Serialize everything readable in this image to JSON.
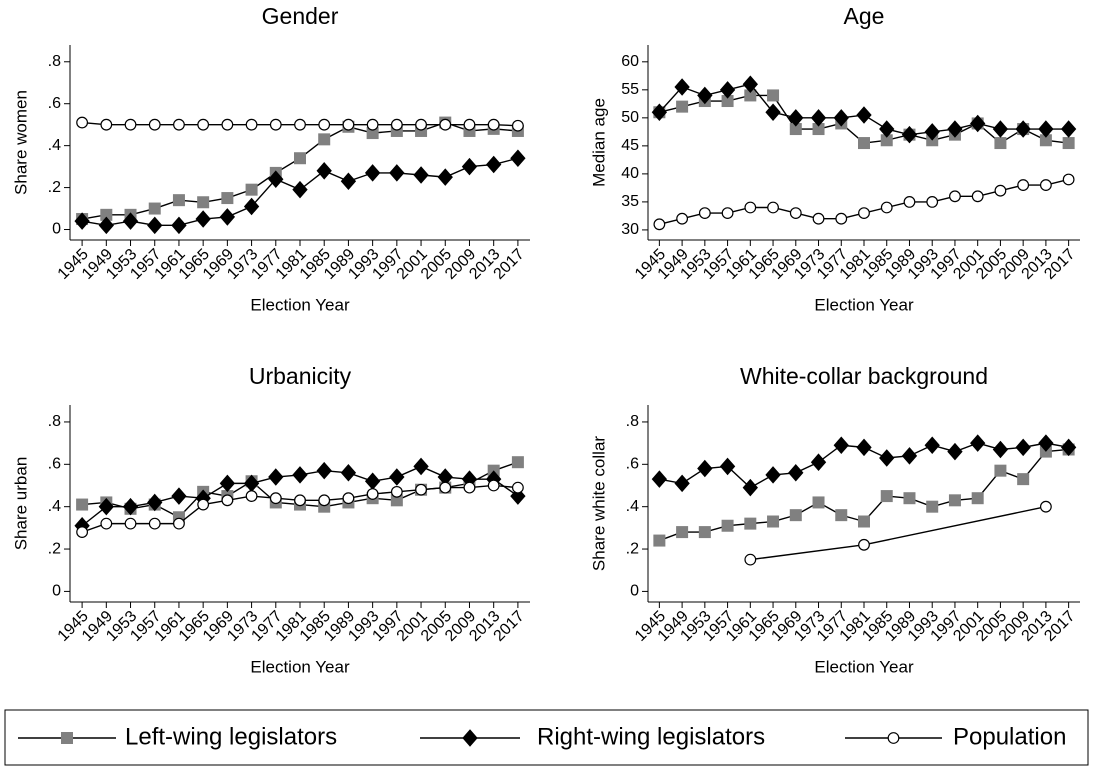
{
  "chart_data": [
    {
      "type": "line",
      "title": "Gender",
      "x_label": "Election Year",
      "y_label": "Share women",
      "x": [
        1945,
        1949,
        1953,
        1957,
        1961,
        1965,
        1969,
        1973,
        1977,
        1981,
        1985,
        1989,
        1993,
        1997,
        2001,
        2005,
        2009,
        2013,
        2017
      ],
      "xlim": [
        1943,
        2019
      ],
      "ylim": [
        -0.05,
        0.88
      ],
      "yticks": [
        0,
        {
          "value": 0.2,
          "label": ".2"
        },
        {
          "value": 0.4,
          "label": ".4"
        },
        {
          "value": 0.6,
          "label": ".6"
        },
        {
          "value": 0.8,
          "label": ".8"
        }
      ],
      "series": [
        {
          "name": "Left-wing legislators",
          "color": "#808080",
          "marker": "square",
          "values": [
            0.05,
            0.07,
            0.07,
            0.1,
            0.14,
            0.13,
            0.15,
            0.19,
            0.27,
            0.34,
            0.43,
            0.49,
            0.46,
            0.47,
            0.47,
            0.51,
            0.47,
            0.48,
            0.47
          ]
        },
        {
          "name": "Right-wing legislators",
          "color": "#000000",
          "marker": "diamond",
          "values": [
            0.04,
            0.02,
            0.04,
            0.02,
            0.02,
            0.05,
            0.06,
            0.11,
            0.24,
            0.19,
            0.28,
            0.23,
            0.27,
            0.27,
            0.26,
            0.25,
            0.3,
            0.31,
            0.34
          ]
        },
        {
          "name": "Population",
          "color": "#ffffff",
          "marker": "circle",
          "values": [
            0.51,
            0.5,
            0.5,
            0.5,
            0.5,
            0.5,
            0.5,
            0.5,
            0.5,
            0.5,
            0.5,
            0.5,
            0.5,
            0.5,
            0.5,
            0.5,
            0.5,
            0.5,
            0.495
          ]
        }
      ]
    },
    {
      "type": "line",
      "title": "Age",
      "x_label": "Election Year",
      "y_label": "Median age",
      "x": [
        1945,
        1949,
        1953,
        1957,
        1961,
        1965,
        1969,
        1973,
        1977,
        1981,
        1985,
        1989,
        1993,
        1997,
        2001,
        2005,
        2009,
        2013,
        2017
      ],
      "xlim": [
        1943,
        2019
      ],
      "ylim": [
        28.2,
        63
      ],
      "yticks": [
        30,
        35,
        40,
        45,
        50,
        55,
        60
      ],
      "series": [
        {
          "color": "#808080",
          "marker": "square",
          "values": [
            51,
            52,
            53,
            53,
            54,
            54,
            48,
            48,
            49,
            45.5,
            46,
            47,
            46,
            47,
            49,
            45.5,
            48,
            46,
            45.5
          ]
        },
        {
          "color": "#000000",
          "marker": "diamond",
          "values": [
            51,
            55.5,
            54,
            55,
            56,
            51,
            50,
            50,
            50,
            50.5,
            48,
            47,
            47.5,
            48,
            49,
            48,
            48,
            48,
            48
          ]
        },
        {
          "color": "#ffffff",
          "marker": "circle",
          "values": [
            31,
            32,
            33,
            33,
            34,
            34,
            33,
            32,
            32,
            33,
            34,
            35,
            35,
            36,
            36,
            37,
            38,
            38,
            39
          ]
        }
      ]
    },
    {
      "type": "line",
      "title": "Urbanicity",
      "x_label": "Election Year",
      "y_label": "Share urban",
      "x": [
        1945,
        1949,
        1953,
        1957,
        1961,
        1965,
        1969,
        1973,
        1977,
        1981,
        1985,
        1989,
        1993,
        1997,
        2001,
        2005,
        2009,
        2013,
        2017
      ],
      "xlim": [
        1943,
        2019
      ],
      "ylim": [
        -0.05,
        0.88
      ],
      "yticks": [
        0,
        {
          "value": 0.2,
          "label": ".2"
        },
        {
          "value": 0.4,
          "label": ".4"
        },
        {
          "value": 0.6,
          "label": ".6"
        },
        {
          "value": 0.8,
          "label": ".8"
        }
      ],
      "series": [
        {
          "color": "#808080",
          "marker": "square",
          "values": [
            0.41,
            0.42,
            0.39,
            0.41,
            0.35,
            0.47,
            0.45,
            0.52,
            0.42,
            0.41,
            0.4,
            0.42,
            0.44,
            0.43,
            0.48,
            0.49,
            0.51,
            0.57,
            0.61
          ]
        },
        {
          "color": "#000000",
          "marker": "diamond",
          "values": [
            0.31,
            0.4,
            0.4,
            0.42,
            0.45,
            0.44,
            0.51,
            0.51,
            0.54,
            0.55,
            0.57,
            0.56,
            0.52,
            0.54,
            0.59,
            0.54,
            0.53,
            0.53,
            0.45
          ]
        },
        {
          "color": "#ffffff",
          "marker": "circle",
          "values": [
            0.28,
            0.32,
            0.32,
            0.32,
            0.32,
            0.41,
            0.43,
            0.45,
            0.44,
            0.43,
            0.43,
            0.44,
            0.46,
            0.47,
            0.48,
            0.49,
            0.49,
            0.5,
            0.49
          ]
        }
      ]
    },
    {
      "type": "line",
      "title": "White-collar background",
      "x_label": "Election Year",
      "y_label": "Share white collar",
      "x": [
        1945,
        1949,
        1953,
        1957,
        1961,
        1965,
        1969,
        1973,
        1977,
        1981,
        1985,
        1989,
        1993,
        1997,
        2001,
        2005,
        2009,
        2013,
        2017
      ],
      "xlim": [
        1943,
        2019
      ],
      "ylim": [
        -0.05,
        0.88
      ],
      "yticks": [
        0,
        {
          "value": 0.2,
          "label": ".2"
        },
        {
          "value": 0.4,
          "label": ".4"
        },
        {
          "value": 0.6,
          "label": ".6"
        },
        {
          "value": 0.8,
          "label": ".8"
        }
      ],
      "series": [
        {
          "color": "#808080",
          "marker": "square",
          "values": [
            0.24,
            0.28,
            0.28,
            0.31,
            0.32,
            0.33,
            0.36,
            0.42,
            0.36,
            0.33,
            0.45,
            0.44,
            0.4,
            0.43,
            0.44,
            0.57,
            0.53,
            0.66,
            0.67
          ]
        },
        {
          "color": "#000000",
          "marker": "diamond",
          "values": [
            0.53,
            0.51,
            0.58,
            0.59,
            0.49,
            0.55,
            0.56,
            0.61,
            0.69,
            0.68,
            0.63,
            0.64,
            0.69,
            0.66,
            0.7,
            0.67,
            0.68,
            0.7,
            0.68
          ]
        },
        {
          "color": "#ffffff",
          "marker": "circle",
          "x": [
            1961,
            1981,
            2013
          ],
          "values": [
            0.15,
            0.22,
            0.4
          ]
        }
      ]
    }
  ]
}
